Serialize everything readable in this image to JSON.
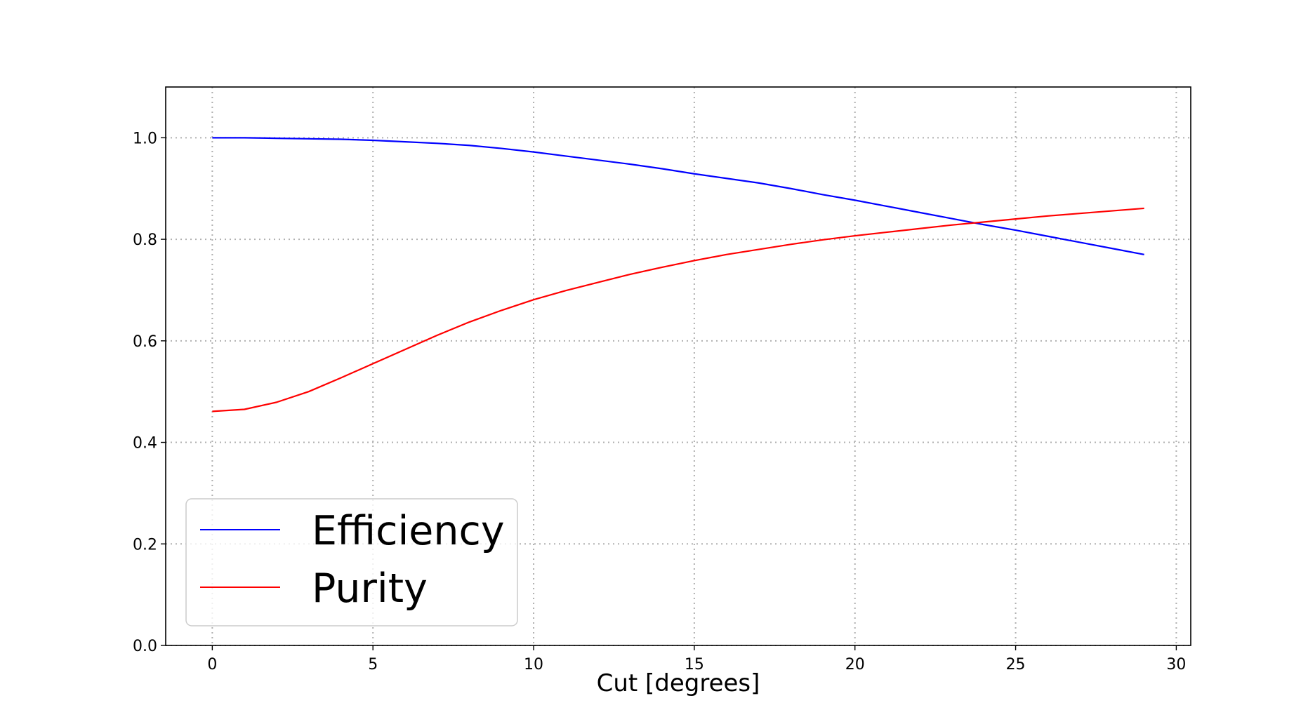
{
  "chart_data": {
    "type": "line",
    "title": "",
    "xlabel": "Cut [degrees]",
    "ylabel": "",
    "xlim": [
      -1.45,
      30.45
    ],
    "ylim": [
      0.0,
      1.1
    ],
    "xticks": [
      0,
      5,
      10,
      15,
      20,
      25,
      30
    ],
    "yticks": [
      0.0,
      0.2,
      0.4,
      0.6,
      0.8,
      1.0
    ],
    "xtick_labels": [
      "0",
      "5",
      "10",
      "15",
      "20",
      "25",
      "30"
    ],
    "ytick_labels": [
      "0.0",
      "0.2",
      "0.4",
      "0.6",
      "0.8",
      "1.0"
    ],
    "grid": true,
    "legend_position": "lower-left",
    "x": [
      0,
      1,
      2,
      3,
      4,
      5,
      6,
      7,
      8,
      9,
      10,
      11,
      12,
      13,
      14,
      15,
      16,
      17,
      18,
      19,
      20,
      21,
      22,
      23,
      24,
      25,
      26,
      27,
      28,
      29
    ],
    "series": [
      {
        "name": "Efficiency",
        "color": "#0000ff",
        "values": [
          1.0,
          1.0,
          0.999,
          0.998,
          0.997,
          0.995,
          0.992,
          0.989,
          0.985,
          0.979,
          0.972,
          0.964,
          0.956,
          0.948,
          0.939,
          0.929,
          0.92,
          0.911,
          0.9,
          0.888,
          0.877,
          0.865,
          0.853,
          0.841,
          0.829,
          0.818,
          0.806,
          0.794,
          0.782,
          0.77
        ]
      },
      {
        "name": "Purity",
        "color": "#ff0000",
        "values": [
          0.461,
          0.465,
          0.479,
          0.5,
          0.527,
          0.555,
          0.583,
          0.611,
          0.637,
          0.66,
          0.681,
          0.699,
          0.715,
          0.731,
          0.745,
          0.758,
          0.77,
          0.78,
          0.79,
          0.799,
          0.807,
          0.814,
          0.821,
          0.828,
          0.834,
          0.84,
          0.846,
          0.851,
          0.856,
          0.861
        ]
      }
    ]
  }
}
